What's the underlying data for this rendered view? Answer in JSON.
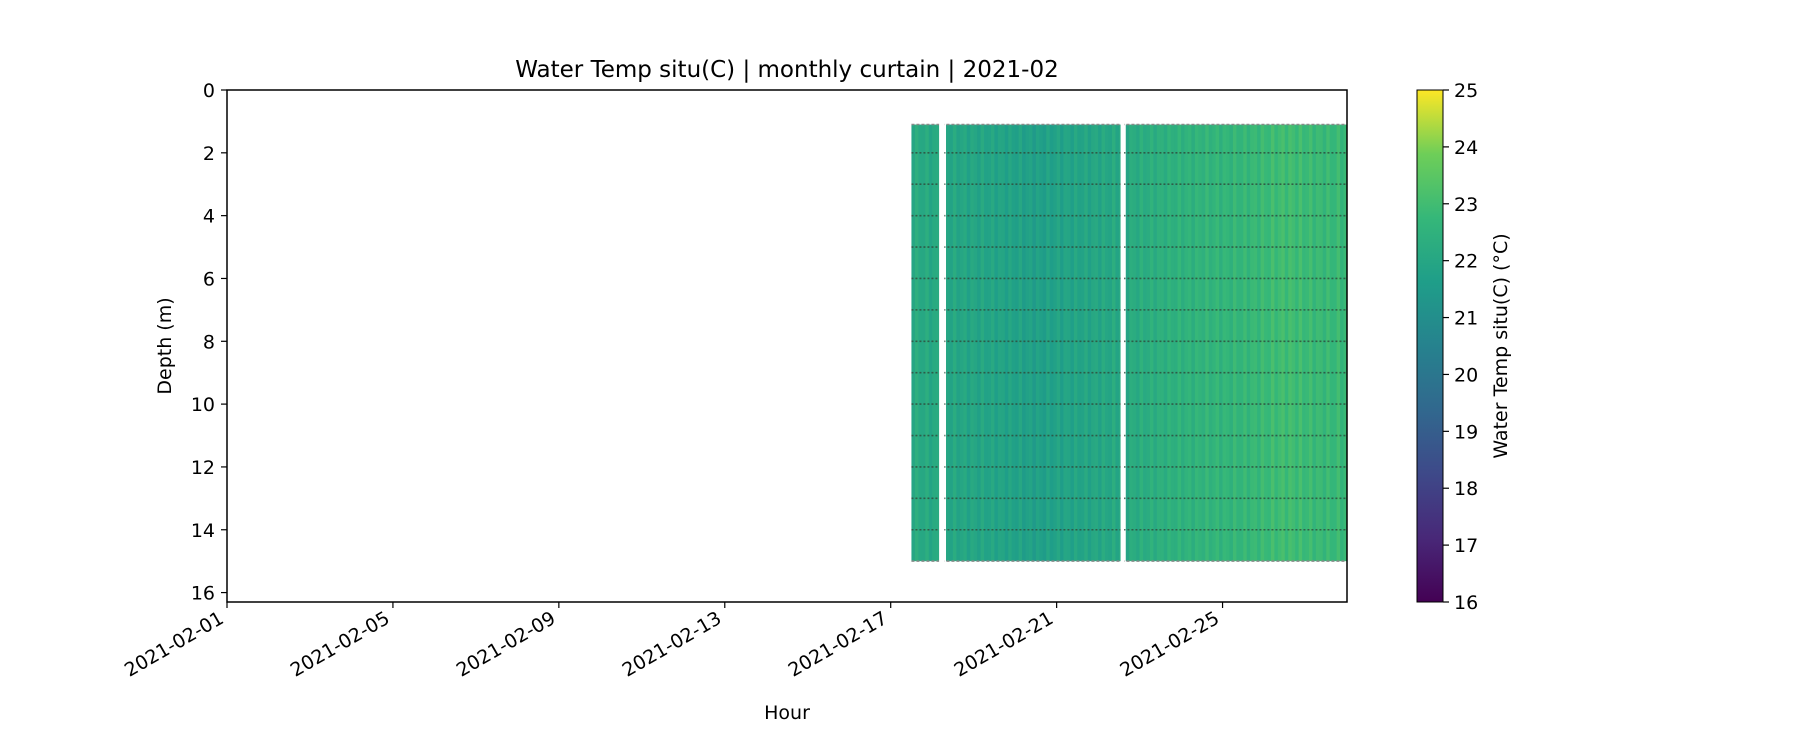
{
  "chart_data": {
    "type": "heatmap",
    "title": "Water Temp situ(C) | monthly curtain | 2021-02",
    "xlabel": "Hour",
    "ylabel": "Depth (m)",
    "colorbar_label": "Water Temp situ(C) (°C)",
    "colormap": "viridis",
    "x_range": [
      "2021-02-01",
      "2021-02-28"
    ],
    "y_range": [
      0,
      16.3
    ],
    "y_inverted": true,
    "c_range": [
      16,
      25
    ],
    "x_ticks": [
      "2021-02-01",
      "2021-02-05",
      "2021-02-09",
      "2021-02-13",
      "2021-02-17",
      "2021-02-21",
      "2021-02-25"
    ],
    "y_ticks": [
      0,
      2,
      4,
      6,
      8,
      10,
      12,
      14,
      16
    ],
    "c_ticks": [
      16,
      17,
      18,
      19,
      20,
      21,
      22,
      23,
      24,
      25
    ],
    "data_start": "2021-02-17 12:00",
    "data_end": "2021-02-28 00:00",
    "depth_top": 1.1,
    "depth_bottom": 15.0,
    "gaps": [
      {
        "start": "2021-02-18 04:00",
        "end": "2021-02-18 07:00"
      },
      {
        "start": "2021-02-22 13:00",
        "end": "2021-02-22 15:00"
      }
    ],
    "sensor_depths": [
      2,
      3,
      4,
      5,
      6,
      7,
      8,
      9,
      10,
      11,
      12,
      13,
      14
    ],
    "daily_mean_temp": [
      {
        "date": "2021-02-17",
        "temp": 22.2
      },
      {
        "date": "2021-02-18",
        "temp": 22.0
      },
      {
        "date": "2021-02-19",
        "temp": 21.9
      },
      {
        "date": "2021-02-20",
        "temp": 21.7
      },
      {
        "date": "2021-02-21",
        "temp": 21.9
      },
      {
        "date": "2021-02-22",
        "temp": 22.1
      },
      {
        "date": "2021-02-23",
        "temp": 22.4
      },
      {
        "date": "2021-02-24",
        "temp": 22.6
      },
      {
        "date": "2021-02-25",
        "temp": 22.7
      },
      {
        "date": "2021-02-26",
        "temp": 23.0
      },
      {
        "date": "2021-02-27",
        "temp": 22.8
      }
    ]
  }
}
